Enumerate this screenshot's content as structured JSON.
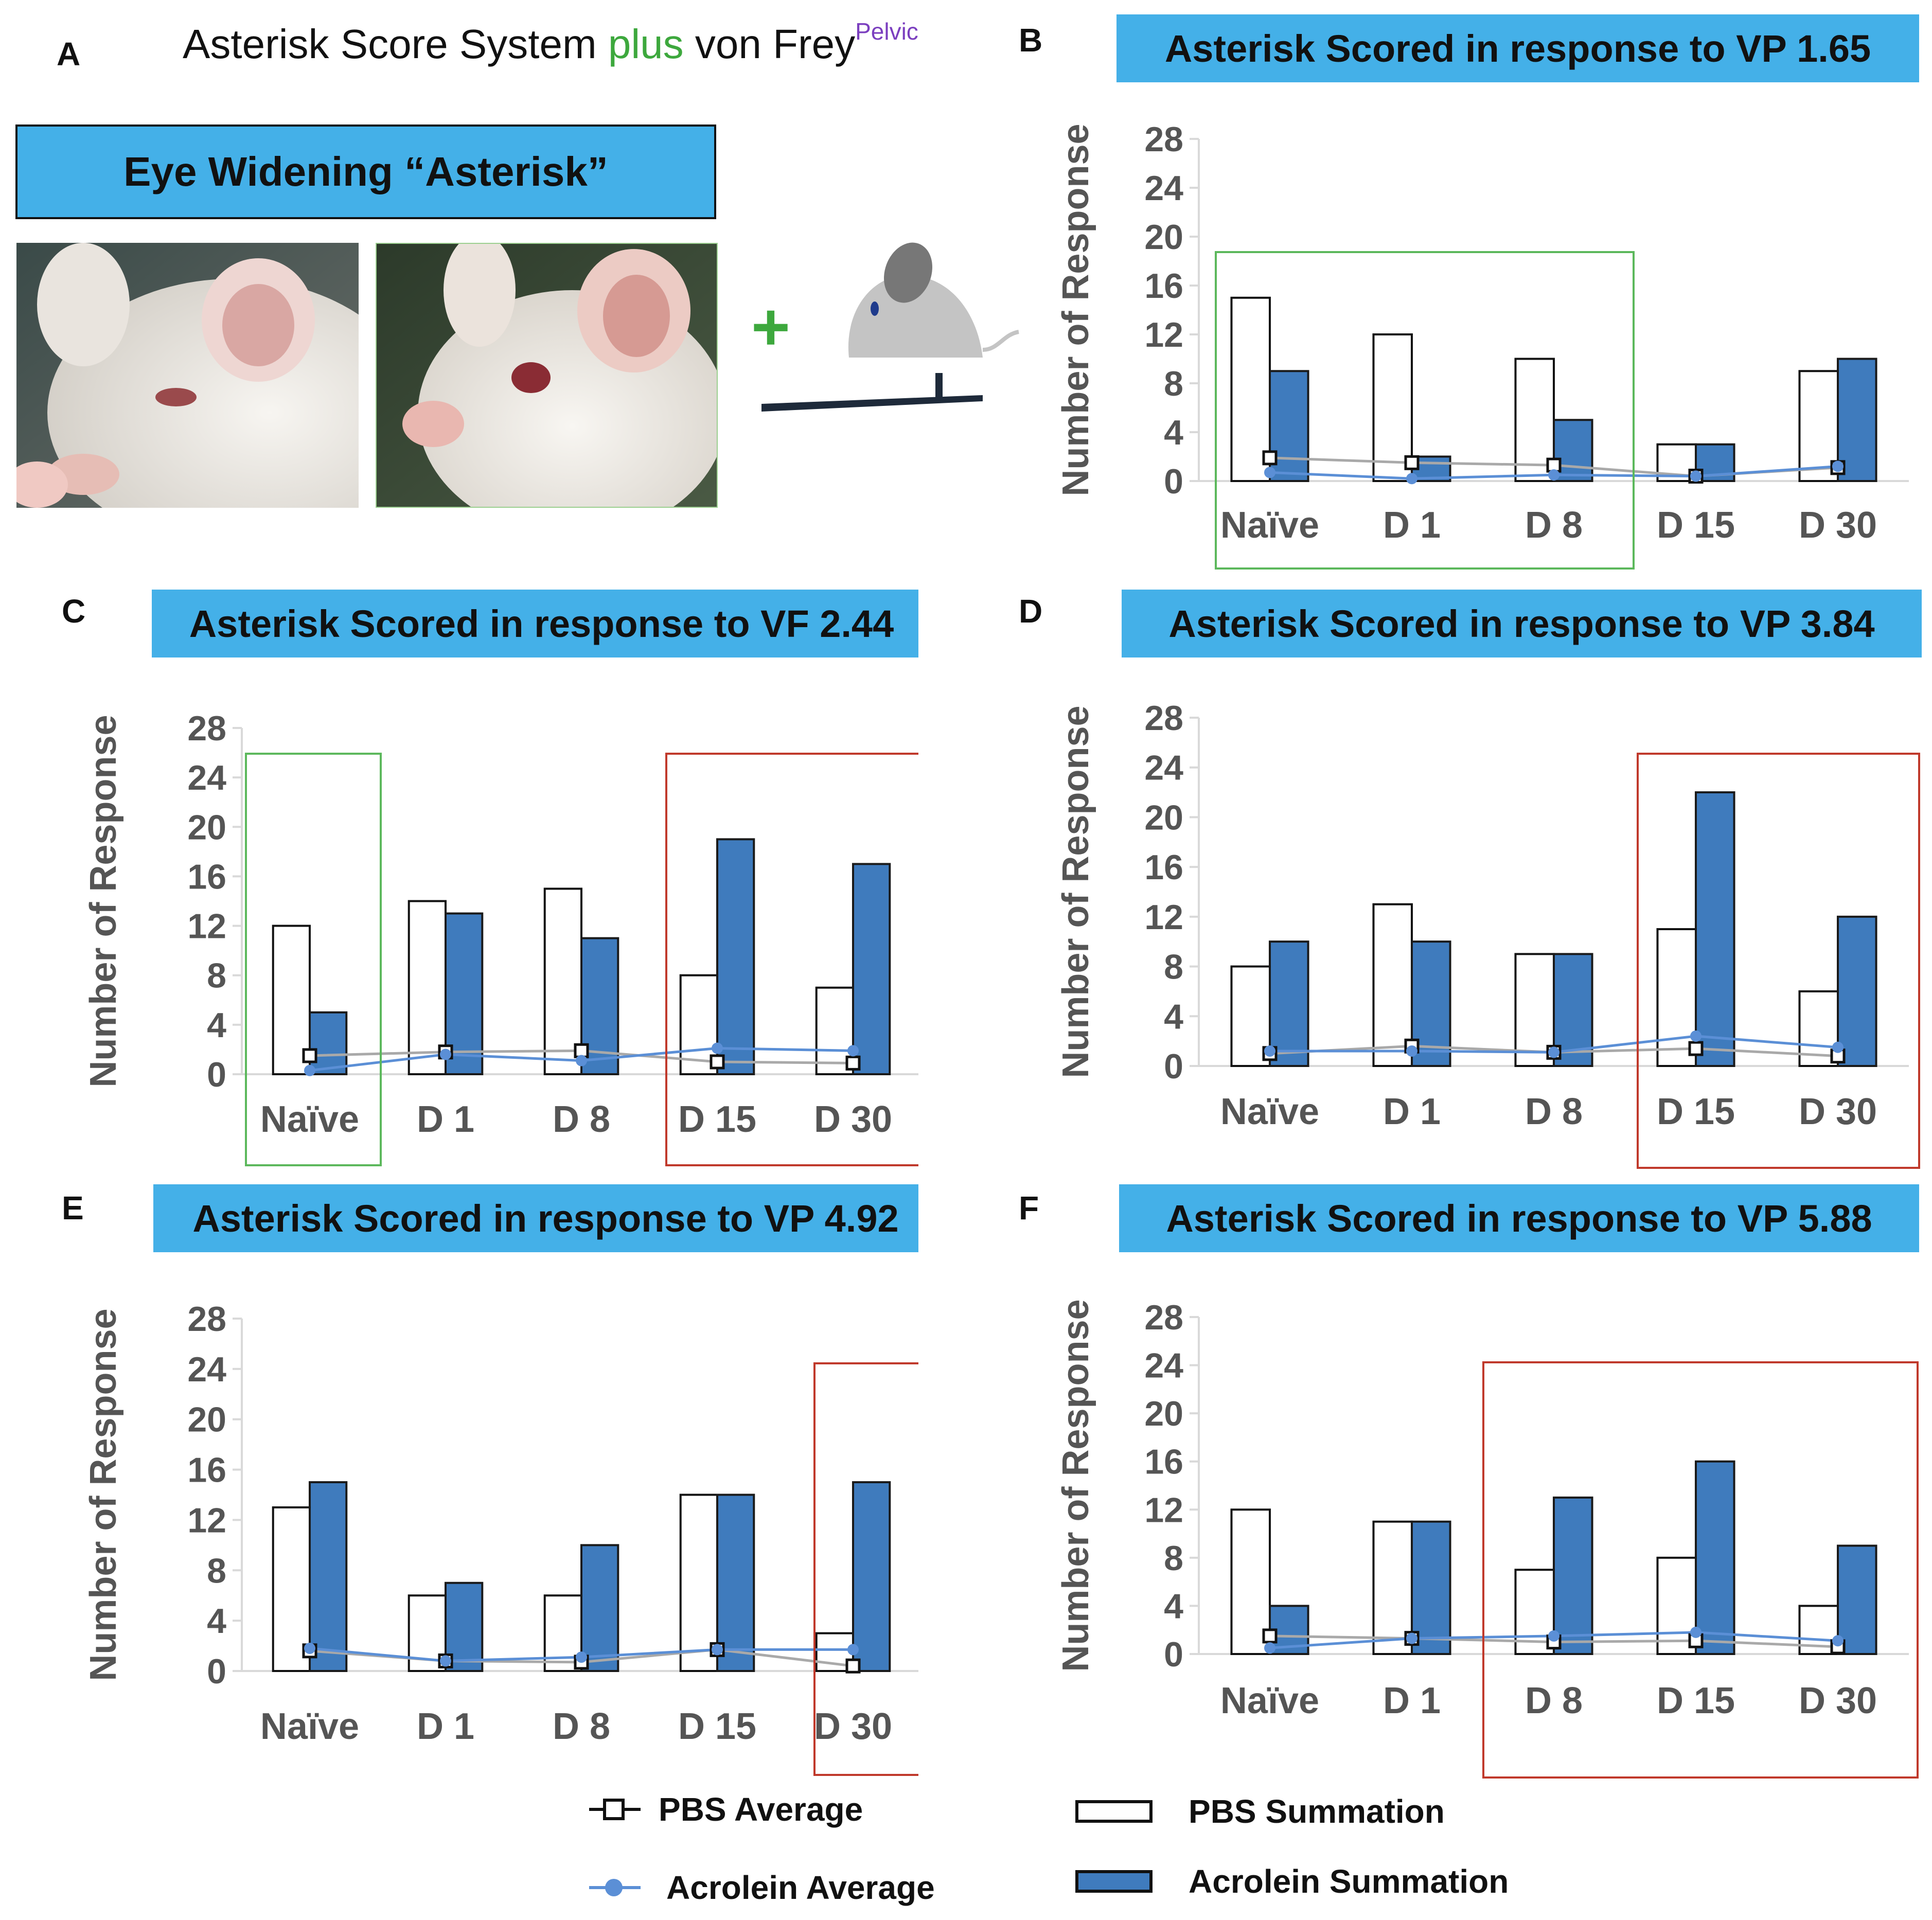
{
  "panel_a": {
    "letter": "A",
    "header_main": "Asterisk Score System ",
    "header_plus": "plus",
    "header_rest": " von Frey",
    "header_sup": "Pelvic",
    "eye_box_label": "Eye Widening “Asterisk”",
    "plus_symbol": "+",
    "plus_color": "#3da83d"
  },
  "colors": {
    "title_bar": "#44b0e8",
    "acrolein_bar": "#3f7bbd",
    "pbs_bar": "#ffffff",
    "acrolein_line": "#5b8fd6",
    "pbs_line": "#a9a9a9",
    "green_box": "#5cb85c",
    "red_box": "#c0392b",
    "gridline": "#d9d9d9"
  },
  "legend": {
    "pbs_average": "PBS Average",
    "acrolein_average": "Acrolein Average",
    "pbs_summation": "PBS Summation",
    "acrolein_summation": "Acrolein Summation"
  },
  "chart_data": [
    {
      "id": "B",
      "type": "bar",
      "title": "Asterisk Scored in response to VP 1.65",
      "ylabel": "Number of Response",
      "ylim": [
        0,
        28
      ],
      "yticks": [
        "0",
        "4",
        "8",
        "12",
        "16",
        "20",
        "24",
        "28"
      ],
      "categories": [
        "Naïve",
        "D 1",
        "D 8",
        "D 15",
        "D 30"
      ],
      "series": [
        {
          "name": "PBS Summation",
          "values": [
            15,
            12,
            10,
            3,
            9
          ]
        },
        {
          "name": "Acrolein Summation",
          "values": [
            9,
            2,
            5,
            3,
            10
          ]
        },
        {
          "name": "PBS Average",
          "values": [
            1.9,
            1.5,
            1.3,
            0.4,
            1.1
          ]
        },
        {
          "name": "Acrolein Average",
          "values": [
            0.7,
            0.2,
            0.5,
            0.4,
            1.2
          ]
        }
      ],
      "highlight": {
        "color": "green",
        "from": 0,
        "to": 2
      }
    },
    {
      "id": "C",
      "type": "bar",
      "title": "Asterisk Scored in response to VF 2.44",
      "ylabel": "Number of Response",
      "ylim": [
        0,
        28
      ],
      "yticks": [
        "0",
        "4",
        "8",
        "12",
        "16",
        "20",
        "24",
        "28"
      ],
      "categories": [
        "Naïve",
        "D 1",
        "D 8",
        "D 15",
        "D 30"
      ],
      "series": [
        {
          "name": "PBS Summation",
          "values": [
            12,
            14,
            15,
            8,
            7
          ]
        },
        {
          "name": "Acrolein Summation",
          "values": [
            5,
            13,
            11,
            19,
            17
          ]
        },
        {
          "name": "PBS Average",
          "values": [
            1.5,
            1.8,
            1.9,
            1.0,
            0.9
          ]
        },
        {
          "name": "Acrolein Average",
          "values": [
            0.3,
            1.6,
            1.1,
            2.1,
            1.9
          ]
        }
      ],
      "highlights": [
        {
          "color": "green",
          "from": 0,
          "to": 0
        },
        {
          "color": "red",
          "from": 3,
          "to": 4
        }
      ]
    },
    {
      "id": "D",
      "type": "bar",
      "title": "Asterisk Scored in response to VP 3.84",
      "ylabel": "Number of Response",
      "ylim": [
        0,
        28
      ],
      "yticks": [
        "0",
        "4",
        "8",
        "12",
        "16",
        "20",
        "24",
        "28"
      ],
      "categories": [
        "Naïve",
        "D 1",
        "D 8",
        "D 15",
        "D 30"
      ],
      "series": [
        {
          "name": "PBS Summation",
          "values": [
            8,
            13,
            9,
            11,
            6
          ]
        },
        {
          "name": "Acrolein Summation",
          "values": [
            10,
            10,
            9,
            22,
            12
          ]
        },
        {
          "name": "PBS Average",
          "values": [
            1.0,
            1.6,
            1.1,
            1.4,
            0.8
          ]
        },
        {
          "name": "Acrolein Average",
          "values": [
            1.2,
            1.2,
            1.1,
            2.4,
            1.5
          ]
        }
      ],
      "highlights": [
        {
          "color": "red",
          "from": 3,
          "to": 4
        }
      ]
    },
    {
      "id": "E",
      "type": "bar",
      "title": "Asterisk Scored in response to VP 4.92",
      "ylabel": "Number of Response",
      "ylim": [
        0,
        28
      ],
      "yticks": [
        "0",
        "4",
        "8",
        "12",
        "16",
        "20",
        "24",
        "28"
      ],
      "categories": [
        "Naïve",
        "D 1",
        "D 8",
        "D 15",
        "D 30"
      ],
      "series": [
        {
          "name": "PBS Summation",
          "values": [
            13,
            6,
            6,
            14,
            3
          ]
        },
        {
          "name": "Acrolein Summation",
          "values": [
            15,
            7,
            10,
            14,
            15
          ]
        },
        {
          "name": "PBS Average",
          "values": [
            1.6,
            0.8,
            0.7,
            1.7,
            0.4
          ]
        },
        {
          "name": "Acrolein Average",
          "values": [
            1.8,
            0.8,
            1.1,
            1.7,
            1.7
          ]
        }
      ],
      "highlights": [
        {
          "color": "red",
          "from": 4,
          "to": 4
        }
      ]
    },
    {
      "id": "F",
      "type": "bar",
      "title": "Asterisk Scored in response to VP 5.88",
      "ylabel": "Number of Response",
      "ylim": [
        0,
        28
      ],
      "yticks": [
        "0",
        "4",
        "8",
        "12",
        "16",
        "20",
        "24",
        "28"
      ],
      "categories": [
        "Naïve",
        "D 1",
        "D 8",
        "D 15",
        "D 30"
      ],
      "series": [
        {
          "name": "PBS Summation",
          "values": [
            12,
            11,
            7,
            8,
            4
          ]
        },
        {
          "name": "Acrolein Summation",
          "values": [
            4,
            11,
            13,
            16,
            9
          ]
        },
        {
          "name": "PBS Average",
          "values": [
            1.5,
            1.3,
            1.0,
            1.1,
            0.6
          ]
        },
        {
          "name": "Acrolein Average",
          "values": [
            0.5,
            1.3,
            1.5,
            1.8,
            1.1
          ]
        }
      ],
      "highlights": [
        {
          "color": "red",
          "from": 2,
          "to": 4
        }
      ]
    }
  ]
}
